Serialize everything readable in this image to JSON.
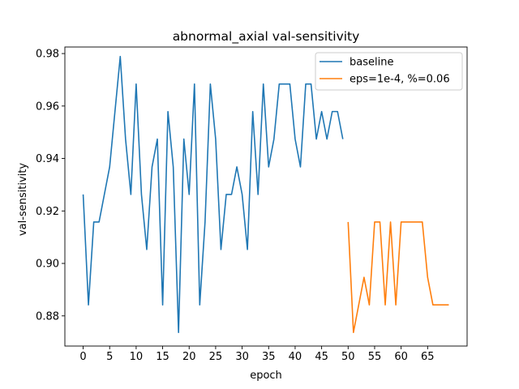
{
  "chart_data": {
    "type": "line",
    "title": "abnormal_axial val-sensitivity",
    "xlabel": "epoch",
    "ylabel": "val-sensitivity",
    "xlim": [
      -3.45,
      72.45
    ],
    "ylim": [
      0.8685,
      0.9825
    ],
    "xticks": [
      0,
      5,
      10,
      15,
      20,
      25,
      30,
      35,
      40,
      45,
      50,
      55,
      60,
      65
    ],
    "yticks": [
      0.88,
      0.9,
      0.92,
      0.94,
      0.96,
      0.98
    ],
    "ytick_labels": [
      "0.88",
      "0.90",
      "0.92",
      "0.94",
      "0.96",
      "0.98"
    ],
    "grid": false,
    "legend_position": "top-right",
    "series": [
      {
        "name": "baseline",
        "color": "#1f77b4",
        "x": [
          0,
          1,
          2,
          3,
          4,
          5,
          6,
          7,
          8,
          9,
          10,
          11,
          12,
          13,
          14,
          15,
          16,
          17,
          18,
          19,
          20,
          21,
          22,
          23,
          24,
          25,
          26,
          27,
          28,
          29,
          30,
          31,
          32,
          33,
          34,
          35,
          36,
          37,
          38,
          39,
          40,
          41,
          42,
          43,
          44,
          45,
          46,
          47,
          48,
          49
        ],
        "values": [
          0.9263,
          0.8842,
          0.9158,
          0.9158,
          0.9263,
          0.9368,
          0.9579,
          0.9789,
          0.9474,
          0.9263,
          0.9684,
          0.9263,
          0.9053,
          0.9368,
          0.9474,
          0.8842,
          0.9579,
          0.9368,
          0.8737,
          0.9474,
          0.9263,
          0.9684,
          0.8842,
          0.9158,
          0.9684,
          0.9474,
          0.9053,
          0.9263,
          0.9263,
          0.9368,
          0.9263,
          0.9053,
          0.9579,
          0.9263,
          0.9684,
          0.9368,
          0.9474,
          0.9684,
          0.9684,
          0.9684,
          0.9474,
          0.9368,
          0.9684,
          0.9684,
          0.9474,
          0.9579,
          0.9474,
          0.9579,
          0.9579,
          0.9474
        ]
      },
      {
        "name": "eps=1e-4, %=0.06",
        "color": "#ff7f0e",
        "x": [
          50,
          51,
          52,
          53,
          54,
          55,
          56,
          57,
          58,
          59,
          60,
          61,
          62,
          63,
          64,
          65,
          66,
          67,
          68,
          69
        ],
        "values": [
          0.9158,
          0.8737,
          0.8842,
          0.8947,
          0.8842,
          0.9158,
          0.9158,
          0.8842,
          0.9158,
          0.8842,
          0.9158,
          0.9158,
          0.9158,
          0.9158,
          0.9158,
          0.8947,
          0.8842,
          0.8842,
          0.8842,
          0.8842
        ]
      }
    ]
  }
}
